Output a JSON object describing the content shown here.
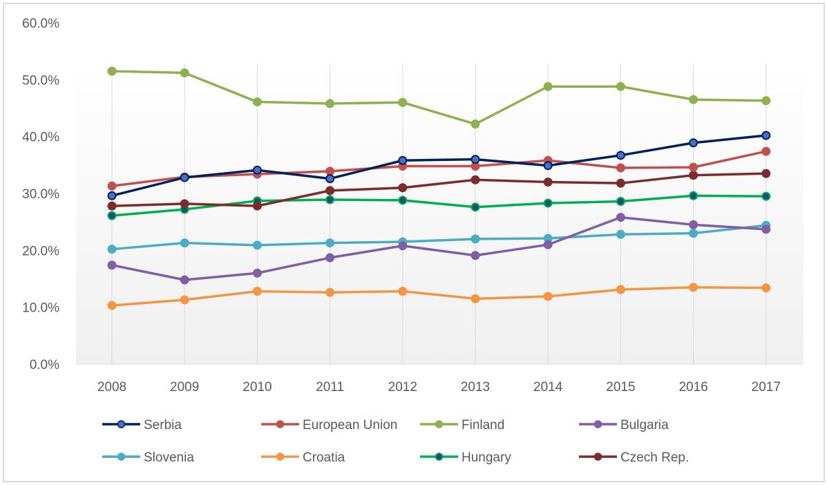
{
  "chart_data": {
    "type": "line",
    "title": "",
    "xlabel": "",
    "ylabel": "",
    "ylim": [
      0,
      60
    ],
    "yticks": [
      "0.0%",
      "10.0%",
      "20.0%",
      "30.0%",
      "40.0%",
      "50.0%",
      "60.0%"
    ],
    "ytick_values": [
      0,
      10,
      20,
      30,
      40,
      50,
      60
    ],
    "grid": "vertical category lines",
    "legend_position": "bottom",
    "categories": [
      "2008",
      "2009",
      "2010",
      "2011",
      "2012",
      "2013",
      "2014",
      "2015",
      "2016",
      "2017"
    ],
    "series": [
      {
        "name": "Serbia",
        "line_color": "#002060",
        "marker_fill": "#4472c4",
        "marker_stroke": "#002060",
        "values": [
          29.6,
          32.8,
          34.1,
          32.6,
          35.8,
          36.0,
          34.9,
          36.7,
          38.9,
          40.2
        ]
      },
      {
        "name": "European Union",
        "line_color": "#c0504d",
        "marker_fill": "#c0504d",
        "marker_stroke": "#c0504d",
        "values": [
          31.3,
          32.9,
          33.4,
          33.9,
          34.8,
          34.8,
          35.8,
          34.5,
          34.6,
          37.4
        ]
      },
      {
        "name": "Finland",
        "line_color": "#8fb04f",
        "marker_fill": "#8fb04f",
        "marker_stroke": "#8fb04f",
        "values": [
          51.5,
          51.2,
          46.1,
          45.8,
          46.0,
          42.2,
          48.8,
          48.8,
          46.5,
          46.3
        ]
      },
      {
        "name": "Bulgaria",
        "line_color": "#7f5fa5",
        "marker_fill": "#7f5fa5",
        "marker_stroke": "#7f5fa5",
        "values": [
          17.4,
          14.8,
          16.0,
          18.7,
          20.8,
          19.1,
          21.0,
          25.8,
          24.5,
          23.7
        ]
      },
      {
        "name": "Slovenia",
        "line_color": "#4bacc6",
        "marker_fill": "#4bacc6",
        "marker_stroke": "#4bacc6",
        "values": [
          20.2,
          21.3,
          20.9,
          21.3,
          21.5,
          22.0,
          22.1,
          22.8,
          23.0,
          24.4
        ]
      },
      {
        "name": "Croatia",
        "line_color": "#f39644",
        "marker_fill": "#f39644",
        "marker_stroke": "#f39644",
        "values": [
          10.3,
          11.3,
          12.8,
          12.6,
          12.8,
          11.5,
          11.9,
          13.1,
          13.5,
          13.4
        ]
      },
      {
        "name": "Hungary",
        "line_color": "#00b050",
        "marker_fill": "#1f4e79",
        "marker_stroke": "#00b050",
        "values": [
          26.1,
          27.2,
          28.7,
          28.9,
          28.8,
          27.6,
          28.3,
          28.6,
          29.6,
          29.5
        ]
      },
      {
        "name": "Czech Rep.",
        "line_color": "#7b2c2c",
        "marker_fill": "#7b2c2c",
        "marker_stroke": "#7b2c2c",
        "values": [
          27.8,
          28.2,
          27.8,
          30.5,
          31.0,
          32.4,
          32.0,
          31.8,
          33.2,
          33.5
        ]
      }
    ]
  }
}
